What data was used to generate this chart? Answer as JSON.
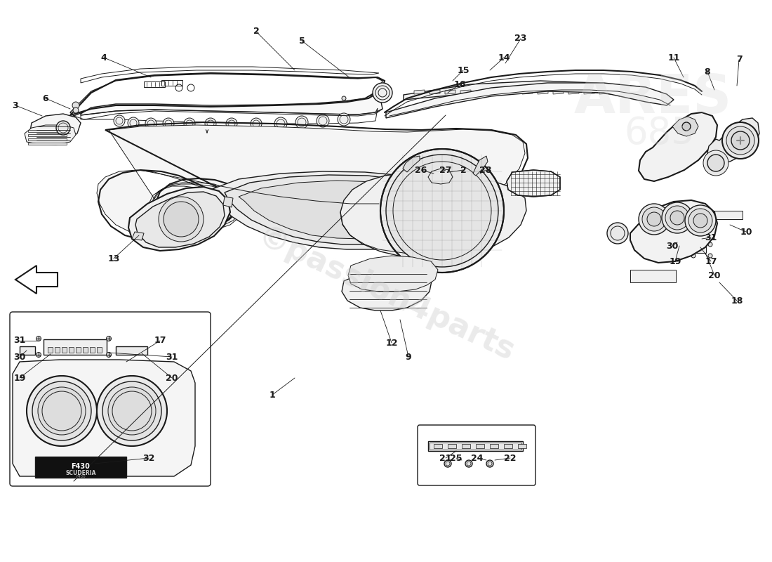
{
  "background_color": "#ffffff",
  "line_color": "#1a1a1a",
  "watermark1": "passion4parts",
  "watermark2": "ARES",
  "watermark3": "685",
  "fig_width": 11.0,
  "fig_height": 8.0,
  "labels": [
    [
      "3",
      28,
      660
    ],
    [
      "6",
      68,
      640
    ],
    [
      "4",
      152,
      710
    ],
    [
      "2",
      367,
      740
    ],
    [
      "5",
      430,
      730
    ],
    [
      "23",
      745,
      738
    ],
    [
      "14",
      718,
      710
    ],
    [
      "15",
      663,
      693
    ],
    [
      "16",
      658,
      673
    ],
    [
      "13",
      165,
      420
    ],
    [
      "1",
      390,
      228
    ],
    [
      "12",
      560,
      320
    ],
    [
      "9",
      582,
      298
    ],
    [
      "26",
      600,
      555
    ],
    [
      "27",
      635,
      555
    ],
    [
      "2",
      660,
      555
    ],
    [
      "28",
      693,
      555
    ],
    [
      "11",
      963,
      710
    ],
    [
      "8",
      1010,
      693
    ],
    [
      "7",
      1055,
      710
    ],
    [
      "10",
      1065,
      468
    ],
    [
      "17",
      1015,
      430
    ],
    [
      "18",
      1052,
      370
    ],
    [
      "20",
      248,
      268
    ],
    [
      "19",
      30,
      268
    ],
    [
      "30",
      32,
      295
    ],
    [
      "31",
      248,
      295
    ],
    [
      "31",
      32,
      318
    ],
    [
      "32",
      215,
      148
    ],
    [
      "21",
      637,
      148
    ],
    [
      "22",
      728,
      148
    ],
    [
      "24",
      683,
      148
    ],
    [
      "25",
      652,
      148
    ],
    [
      "19",
      965,
      432
    ],
    [
      "20",
      1020,
      408
    ],
    [
      "30",
      960,
      457
    ],
    [
      "31",
      1015,
      468
    ],
    [
      "17",
      230,
      318
    ]
  ],
  "leader_lines": [
    [
      28,
      660,
      65,
      620
    ],
    [
      68,
      640,
      80,
      610
    ],
    [
      152,
      710,
      190,
      682
    ],
    [
      367,
      740,
      390,
      680
    ],
    [
      430,
      730,
      460,
      680
    ],
    [
      745,
      738,
      720,
      700
    ],
    [
      718,
      710,
      690,
      688
    ],
    [
      663,
      693,
      655,
      678
    ],
    [
      658,
      673,
      648,
      662
    ],
    [
      165,
      420,
      200,
      460
    ],
    [
      390,
      228,
      430,
      250
    ],
    [
      560,
      320,
      540,
      345
    ],
    [
      582,
      298,
      570,
      335
    ],
    [
      600,
      555,
      620,
      560
    ],
    [
      635,
      555,
      640,
      558
    ],
    [
      660,
      555,
      655,
      558
    ],
    [
      693,
      555,
      680,
      558
    ],
    [
      963,
      710,
      958,
      690
    ],
    [
      1010,
      693,
      1005,
      673
    ],
    [
      1055,
      710,
      1055,
      688
    ],
    [
      1065,
      468,
      1045,
      468
    ],
    [
      1015,
      430,
      1000,
      448
    ],
    [
      1052,
      370,
      1040,
      388
    ],
    [
      248,
      268,
      215,
      280
    ],
    [
      30,
      268,
      55,
      280
    ],
    [
      32,
      295,
      55,
      290
    ],
    [
      248,
      295,
      215,
      285
    ],
    [
      32,
      318,
      50,
      310
    ],
    [
      215,
      148,
      180,
      158
    ],
    [
      637,
      148,
      660,
      168
    ],
    [
      728,
      148,
      720,
      168
    ],
    [
      683,
      148,
      688,
      168
    ],
    [
      652,
      148,
      660,
      168
    ],
    [
      965,
      432,
      970,
      450
    ],
    [
      1020,
      408,
      1010,
      435
    ],
    [
      960,
      457,
      970,
      458
    ],
    [
      1015,
      468,
      1005,
      460
    ],
    [
      230,
      318,
      175,
      300
    ]
  ]
}
